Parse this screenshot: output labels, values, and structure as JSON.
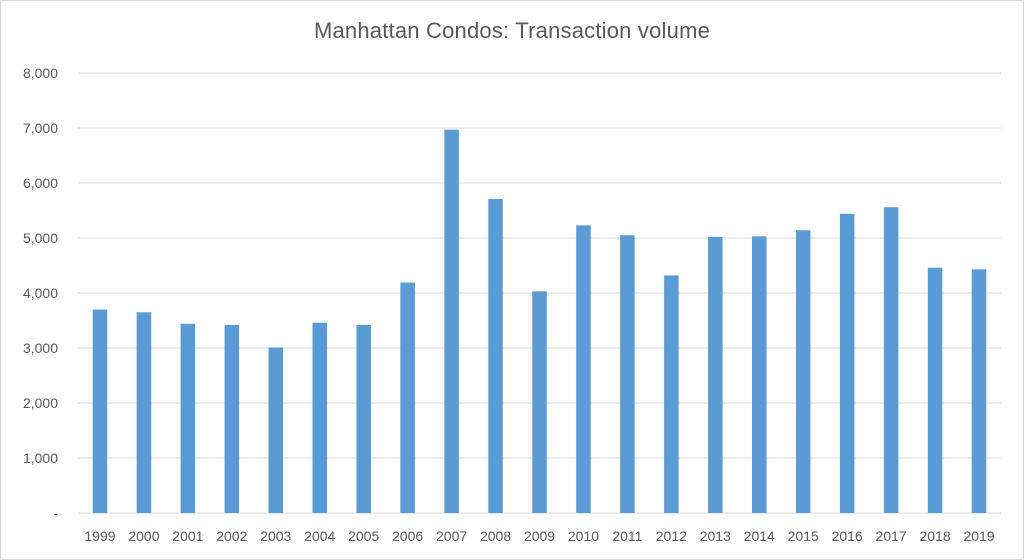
{
  "chart_data": {
    "type": "bar",
    "title": "Manhattan Condos:  Transaction volume",
    "xlabel": "",
    "ylabel": "",
    "categories": [
      "1999",
      "2000",
      "2001",
      "2002",
      "2003",
      "2004",
      "2005",
      "2006",
      "2007",
      "2008",
      "2009",
      "2010",
      "2011",
      "2012",
      "2013",
      "2014",
      "2015",
      "2016",
      "2017",
      "2018",
      "2019"
    ],
    "values": [
      3700,
      3650,
      3440,
      3420,
      3010,
      3460,
      3420,
      4190,
      6970,
      5710,
      4030,
      5230,
      5050,
      4320,
      5020,
      5030,
      5140,
      5440,
      5560,
      4460,
      4430
    ],
    "ylim": [
      0,
      8000
    ],
    "yticks": [
      0,
      1000,
      2000,
      3000,
      4000,
      5000,
      6000,
      7000,
      8000
    ],
    "ytick_labels": [
      "-",
      "1,000",
      "2,000",
      "3,000",
      "4,000",
      "5,000",
      "6,000",
      "7,000",
      "8,000"
    ],
    "grid": true,
    "legend": "none",
    "colors": {
      "bar": "#5b9bd5",
      "grid": "#d9d9d9",
      "text": "#595959"
    }
  }
}
